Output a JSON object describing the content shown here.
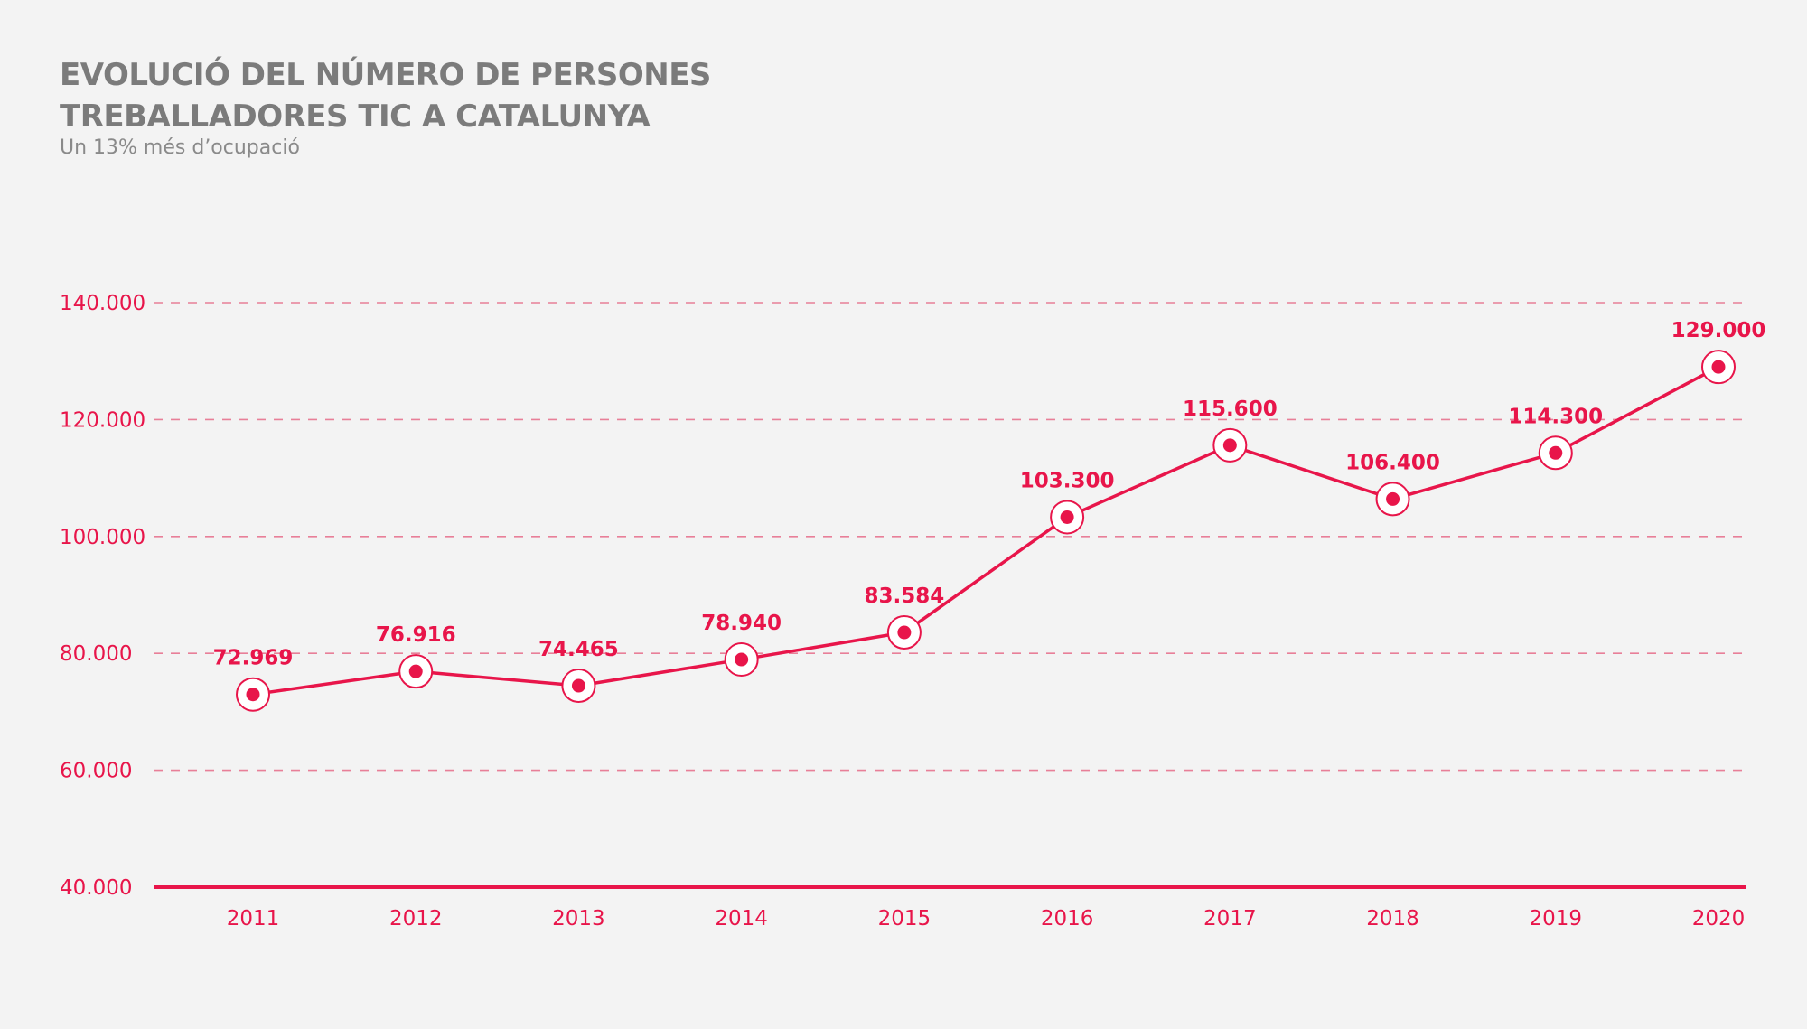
{
  "chart_data": {
    "type": "line",
    "title_lines": [
      "EVOLUCIÓ DEL NÚMERO DE PERSONES",
      "TREBALLADORES TIC A CATALUNYA"
    ],
    "subtitle": "Un 13% més d’ocupació",
    "x": [
      "2011",
      "2012",
      "2013",
      "2014",
      "2015",
      "2016",
      "2017",
      "2018",
      "2019",
      "2020"
    ],
    "values": [
      72969,
      76916,
      74465,
      78940,
      83584,
      103300,
      115600,
      106400,
      114300,
      129000
    ],
    "data_labels": [
      "72.969",
      "76.916",
      "74.465",
      "78.940",
      "83.584",
      "103.300",
      "115.600",
      "106.400",
      "114.300",
      "129.000"
    ],
    "y_ticks": [
      40000,
      60000,
      80000,
      100000,
      120000,
      140000
    ],
    "y_tick_labels": [
      "40.000",
      "60.000",
      "80.000",
      "100.000",
      "120.000",
      "140.000"
    ],
    "ylim": [
      40000,
      140000
    ],
    "grid": true,
    "legend": "none",
    "colors": {
      "accent": "#e8154a",
      "grid": "#e87f98",
      "title": "#7b7b7b",
      "background": "#f3f3f3"
    }
  }
}
